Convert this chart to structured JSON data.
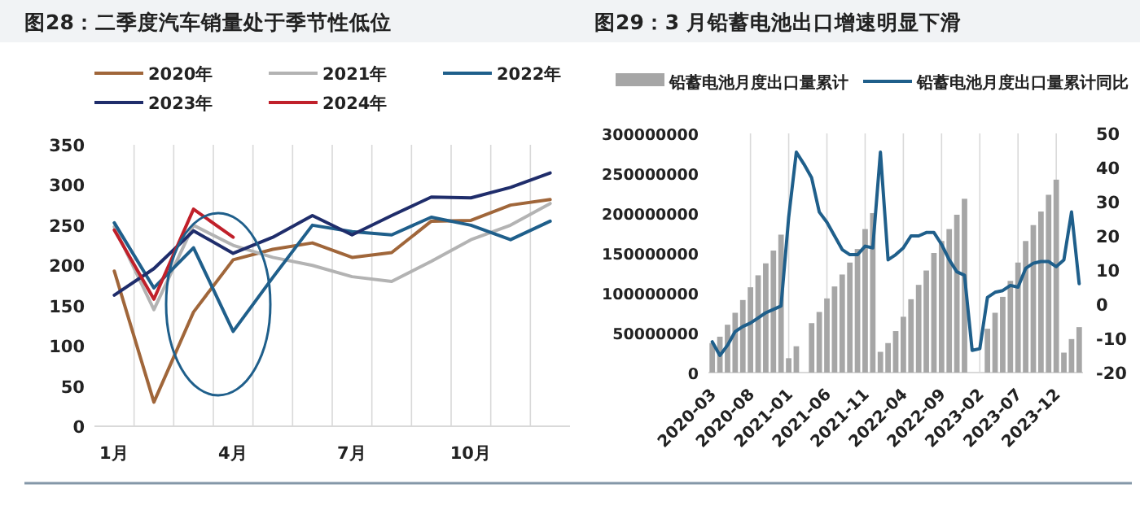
{
  "chart_data": [
    {
      "type": "line",
      "title": "图28：二季度汽车销量处于季节性低位",
      "categories": [
        "1月",
        null,
        null,
        "4月",
        null,
        null,
        "7月",
        null,
        null,
        "10月",
        null,
        null
      ],
      "series": [
        {
          "name": "2020年",
          "color": "#a0663a",
          "values": [
            193,
            30,
            142,
            207,
            220,
            228,
            210,
            216,
            255,
            256,
            275,
            282
          ]
        },
        {
          "name": "2021年",
          "color": "#b3b3b3",
          "values": [
            248,
            145,
            250,
            225,
            210,
            200,
            186,
            180,
            205,
            232,
            250,
            277
          ]
        },
        {
          "name": "2022年",
          "color": "#1f5f8b",
          "values": [
            253,
            172,
            222,
            118,
            185,
            250,
            242,
            238,
            260,
            250,
            232,
            255
          ]
        },
        {
          "name": "2023年",
          "color": "#1f2d6b",
          "values": [
            163,
            196,
            243,
            215,
            235,
            262,
            238,
            262,
            285,
            284,
            297,
            315
          ]
        },
        {
          "name": "2024年",
          "color": "#c0202a",
          "values": [
            244,
            158,
            270,
            235,
            null,
            null,
            null,
            null,
            null,
            null,
            null,
            null
          ]
        }
      ],
      "ylim": [
        0,
        350
      ],
      "yticks": [
        0,
        50,
        100,
        150,
        200,
        250,
        300,
        350
      ],
      "grid": "x",
      "legend": "top"
    },
    {
      "type": "bar",
      "title": "图29：3 月铅蓄电池出口增速明显下滑",
      "categories": [
        "2020-03",
        null,
        null,
        null,
        null,
        "2020-08",
        null,
        null,
        null,
        null,
        "2021-01",
        null,
        null,
        null,
        null,
        "2021-06",
        null,
        null,
        null,
        null,
        "2021-11",
        null,
        null,
        null,
        null,
        "2022-04",
        null,
        null,
        null,
        null,
        "2022-09",
        null,
        null,
        null,
        null,
        "2023-02",
        null,
        null,
        null,
        null,
        "2023-07",
        null,
        null,
        null,
        null,
        "2023-12",
        null,
        null,
        null
      ],
      "series": [
        {
          "name": "铅蓄电池月度出口量累计",
          "color": "#a6a6a6",
          "values": [
            37000000,
            45000000,
            60000000,
            75000000,
            91000000,
            107000000,
            122000000,
            137000000,
            153000000,
            173000000,
            18000000,
            33000000,
            null,
            62000000,
            76000000,
            93000000,
            108000000,
            123000000,
            138000000,
            155000000,
            180000000,
            200000000,
            26000000,
            37000000,
            52000000,
            70000000,
            92000000,
            110000000,
            128000000,
            150000000,
            165000000,
            180000000,
            198000000,
            218000000,
            null,
            null,
            55000000,
            75000000,
            95000000,
            115000000,
            138000000,
            165000000,
            185000000,
            202000000,
            223000000,
            242000000,
            25000000,
            42000000,
            57000000
          ]
        },
        {
          "name": "铅蓄电池月度出口量累计同比",
          "type": "line",
          "axis": "y2",
          "color": "#1f5f8b",
          "values": [
            -11,
            -15,
            -12,
            -8,
            -6.5,
            -5.5,
            -4,
            -2.5,
            -1.5,
            -0.5,
            25.5,
            44.5,
            41,
            37,
            27,
            24,
            20,
            16,
            14.5,
            14.5,
            17,
            16.5,
            44.5,
            13,
            14.5,
            16.5,
            20,
            20,
            21,
            21,
            17.5,
            13,
            9.5,
            8.5,
            -13.5,
            -13,
            2,
            3.5,
            4,
            5.5,
            5,
            10.5,
            12,
            12.5,
            12.5,
            11,
            13,
            27,
            6
          ]
        }
      ],
      "ylim": [
        0,
        300000000
      ],
      "yticks": [
        0,
        50000000,
        100000000,
        150000000,
        200000000,
        250000000,
        300000000
      ],
      "y2lim": [
        -20,
        50
      ],
      "y2ticks": [
        -20,
        -10,
        0,
        10,
        20,
        30,
        40,
        50
      ],
      "grid": "x",
      "legend": "top"
    }
  ]
}
